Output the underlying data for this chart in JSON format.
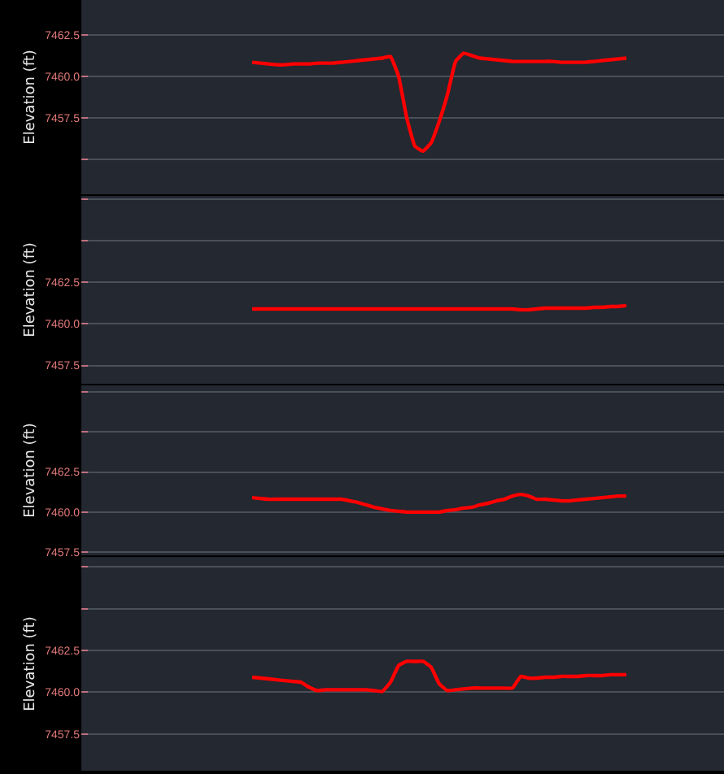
{
  "chart_data": [
    {
      "type": "line",
      "ylabel": "Elevation (ft)",
      "categories": [
        null,
        null,
        null,
        null,
        null,
        null,
        null,
        null,
        null,
        null,
        null,
        null,
        null,
        null,
        null,
        null,
        null,
        null,
        null,
        null,
        null,
        null,
        null,
        null,
        null,
        null,
        null,
        null,
        null,
        null,
        null,
        null,
        null,
        null,
        null,
        null,
        null,
        null,
        null,
        null,
        null,
        null,
        null,
        null,
        null,
        null,
        null
      ],
      "series": [
        {
          "color": "#ff0000",
          "values": [
            7460.85,
            7460.8,
            7460.75,
            7460.7,
            7460.7,
            7460.75,
            7460.75,
            7460.75,
            7460.8,
            7460.8,
            7460.8,
            7460.85,
            7460.9,
            7460.95,
            7461.0,
            7461.05,
            7461.1,
            7461.2,
            7460.0,
            7457.5,
            7455.8,
            7455.5,
            7456.0,
            7457.3,
            7458.9,
            7460.9,
            7461.4,
            7461.25,
            7461.1,
            7461.05,
            7461.0,
            7460.95,
            7460.9,
            7460.9,
            7460.9,
            7460.9,
            7460.9,
            7460.9,
            7460.85,
            7460.85,
            7460.85,
            7460.85,
            7460.9,
            7460.95,
            7461.0,
            7461.05,
            7461.1
          ]
        }
      ],
      "ylim": [
        7452.9,
        7464.6
      ],
      "yticks": [
        {
          "value": 7455.0,
          "label": null
        },
        {
          "value": 7457.5,
          "label": "7457.5"
        },
        {
          "value": 7460.0,
          "label": "7460.0"
        },
        {
          "value": 7462.5,
          "label": "7462.5"
        }
      ],
      "grid": "y",
      "tick_labels": "y",
      "marker": "none",
      "line_style": "solid"
    },
    {
      "type": "line",
      "ylabel": "Elevation (ft)",
      "categories": [
        null,
        null,
        null,
        null,
        null,
        null,
        null,
        null,
        null,
        null,
        null,
        null,
        null,
        null,
        null,
        null,
        null,
        null,
        null,
        null,
        null,
        null,
        null,
        null,
        null,
        null,
        null,
        null,
        null,
        null,
        null,
        null,
        null,
        null,
        null,
        null,
        null,
        null,
        null,
        null,
        null,
        null,
        null,
        null,
        null,
        null,
        null
      ],
      "series": [
        {
          "color": "#ff0000",
          "values": [
            7460.9,
            7460.9,
            7460.9,
            7460.9,
            7460.9,
            7460.9,
            7460.9,
            7460.9,
            7460.9,
            7460.9,
            7460.9,
            7460.9,
            7460.9,
            7460.9,
            7460.9,
            7460.9,
            7460.9,
            7460.9,
            7460.9,
            7460.9,
            7460.9,
            7460.9,
            7460.9,
            7460.9,
            7460.9,
            7460.9,
            7460.9,
            7460.9,
            7460.9,
            7460.9,
            7460.9,
            7460.9,
            7460.9,
            7460.85,
            7460.85,
            7460.9,
            7460.95,
            7460.95,
            7460.95,
            7460.95,
            7460.95,
            7460.95,
            7461.0,
            7461.0,
            7461.05,
            7461.05,
            7461.1
          ]
        }
      ],
      "ylim": [
        7456.4,
        7467.7
      ],
      "yticks": [
        {
          "value": 7457.5,
          "label": "7457.5"
        },
        {
          "value": 7460.0,
          "label": "7460.0"
        },
        {
          "value": 7462.5,
          "label": "7462.5"
        },
        {
          "value": 7465.0,
          "label": null
        },
        {
          "value": 7467.5,
          "label": null
        }
      ],
      "grid": "y",
      "tick_labels": "y",
      "marker": "none",
      "line_style": "solid"
    },
    {
      "type": "line",
      "ylabel": "Elevation (ft)",
      "categories": [
        null,
        null,
        null,
        null,
        null,
        null,
        null,
        null,
        null,
        null,
        null,
        null,
        null,
        null,
        null,
        null,
        null,
        null,
        null,
        null,
        null,
        null,
        null,
        null,
        null,
        null,
        null,
        null,
        null,
        null,
        null,
        null,
        null,
        null,
        null,
        null,
        null,
        null,
        null,
        null,
        null,
        null,
        null,
        null,
        null,
        null,
        null
      ],
      "series": [
        {
          "color": "#ff0000",
          "values": [
            7460.9,
            7460.85,
            7460.8,
            7460.8,
            7460.8,
            7460.8,
            7460.8,
            7460.8,
            7460.8,
            7460.8,
            7460.8,
            7460.8,
            7460.7,
            7460.6,
            7460.45,
            7460.3,
            7460.2,
            7460.1,
            7460.05,
            7460.0,
            7460.0,
            7460.0,
            7460.0,
            7460.0,
            7460.1,
            7460.15,
            7460.25,
            7460.3,
            7460.45,
            7460.55,
            7460.7,
            7460.8,
            7461.0,
            7461.1,
            7461.0,
            7460.8,
            7460.8,
            7460.75,
            7460.7,
            7460.7,
            7460.75,
            7460.8,
            7460.85,
            7460.9,
            7460.95,
            7461.0,
            7461.0
          ]
        }
      ],
      "ylim": [
        7457.3,
        7467.9
      ],
      "yticks": [
        {
          "value": 7457.5,
          "label": "7457.5"
        },
        {
          "value": 7460.0,
          "label": "7460.0"
        },
        {
          "value": 7462.5,
          "label": "7462.5"
        },
        {
          "value": 7465.0,
          "label": null
        },
        {
          "value": 7467.5,
          "label": null
        }
      ],
      "grid": "y",
      "tick_labels": "y",
      "marker": "none",
      "line_style": "solid"
    },
    {
      "type": "line",
      "ylabel": "Elevation (ft)",
      "categories": [
        null,
        null,
        null,
        null,
        null,
        null,
        null,
        null,
        null,
        null,
        null,
        null,
        null,
        null,
        null,
        null,
        null,
        null,
        null,
        null,
        null,
        null,
        null,
        null,
        null,
        null,
        null,
        null,
        null,
        null,
        null,
        null,
        null,
        null,
        null,
        null,
        null,
        null,
        null,
        null,
        null,
        null,
        null,
        null,
        null,
        null,
        null
      ],
      "series": [
        {
          "color": "#ff0000",
          "values": [
            7460.9,
            7460.85,
            7460.8,
            7460.75,
            7460.7,
            7460.65,
            7460.6,
            7460.3,
            7460.1,
            7460.15,
            7460.15,
            7460.15,
            7460.15,
            7460.15,
            7460.15,
            7460.1,
            7460.05,
            7460.6,
            7461.6,
            7461.85,
            7461.85,
            7461.85,
            7461.5,
            7460.5,
            7460.1,
            7460.15,
            7460.2,
            7460.25,
            7460.25,
            7460.25,
            7460.25,
            7460.25,
            7460.25,
            7460.95,
            7460.85,
            7460.85,
            7460.9,
            7460.9,
            7460.95,
            7460.95,
            7460.95,
            7461.0,
            7461.0,
            7461.0,
            7461.05,
            7461.05,
            7461.05
          ]
        }
      ],
      "ylim": [
        7455.3,
        7468.1
      ],
      "yticks": [
        {
          "value": 7457.5,
          "label": "7457.5"
        },
        {
          "value": 7460.0,
          "label": "7460.0"
        },
        {
          "value": 7462.5,
          "label": "7462.5"
        },
        {
          "value": 7465.0,
          "label": null
        },
        {
          "value": 7467.5,
          "label": null
        }
      ],
      "grid": "y",
      "tick_labels": "y",
      "marker": "none",
      "line_style": "solid"
    }
  ]
}
